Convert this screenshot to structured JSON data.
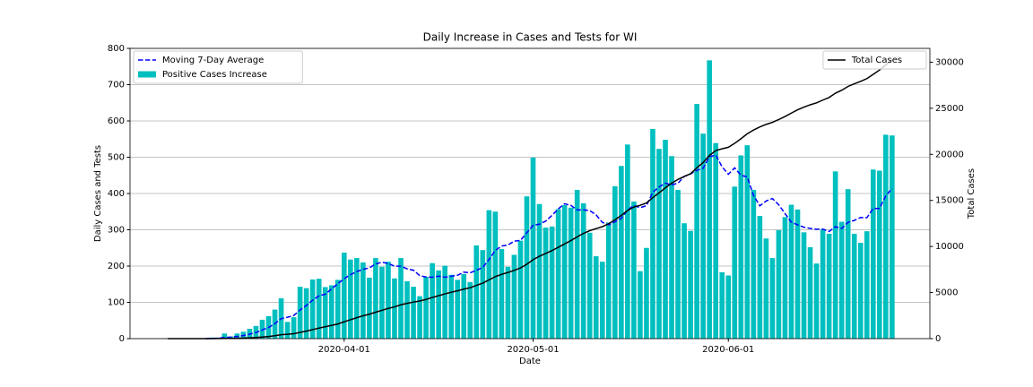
{
  "chart_data": {
    "type": "bar",
    "title": "Daily Increase in Cases and Tests for WI",
    "xlabel": "Date",
    "ylabel": "Daily Cases and Tests",
    "y2label": "Total Cases",
    "x": [
      "2020-03-04",
      "2020-03-05",
      "2020-03-06",
      "2020-03-07",
      "2020-03-08",
      "2020-03-09",
      "2020-03-10",
      "2020-03-11",
      "2020-03-12",
      "2020-03-13",
      "2020-03-14",
      "2020-03-15",
      "2020-03-16",
      "2020-03-17",
      "2020-03-18",
      "2020-03-19",
      "2020-03-20",
      "2020-03-21",
      "2020-03-22",
      "2020-03-23",
      "2020-03-24",
      "2020-03-25",
      "2020-03-26",
      "2020-03-27",
      "2020-03-28",
      "2020-03-29",
      "2020-03-30",
      "2020-03-31",
      "2020-04-01",
      "2020-04-02",
      "2020-04-03",
      "2020-04-04",
      "2020-04-05",
      "2020-04-06",
      "2020-04-07",
      "2020-04-08",
      "2020-04-09",
      "2020-04-10",
      "2020-04-11",
      "2020-04-12",
      "2020-04-13",
      "2020-04-14",
      "2020-04-15",
      "2020-04-16",
      "2020-04-17",
      "2020-04-18",
      "2020-04-19",
      "2020-04-20",
      "2020-04-21",
      "2020-04-22",
      "2020-04-23",
      "2020-04-24",
      "2020-04-25",
      "2020-04-26",
      "2020-04-27",
      "2020-04-28",
      "2020-04-29",
      "2020-04-30",
      "2020-05-01",
      "2020-05-02",
      "2020-05-03",
      "2020-05-04",
      "2020-05-05",
      "2020-05-06",
      "2020-05-07",
      "2020-05-08",
      "2020-05-09",
      "2020-05-10",
      "2020-05-11",
      "2020-05-12",
      "2020-05-13",
      "2020-05-14",
      "2020-05-15",
      "2020-05-16",
      "2020-05-17",
      "2020-05-18",
      "2020-05-19",
      "2020-05-20",
      "2020-05-21",
      "2020-05-22",
      "2020-05-23",
      "2020-05-24",
      "2020-05-25",
      "2020-05-26",
      "2020-05-27",
      "2020-05-28",
      "2020-05-29",
      "2020-05-30",
      "2020-05-31",
      "2020-06-01",
      "2020-06-02",
      "2020-06-03",
      "2020-06-04",
      "2020-06-05",
      "2020-06-06",
      "2020-06-07",
      "2020-06-08",
      "2020-06-09",
      "2020-06-10",
      "2020-06-11",
      "2020-06-12",
      "2020-06-13",
      "2020-06-14",
      "2020-06-15",
      "2020-06-16",
      "2020-06-17",
      "2020-06-18",
      "2020-06-19",
      "2020-06-20",
      "2020-06-21",
      "2020-06-22",
      "2020-06-23",
      "2020-06-24",
      "2020-06-25",
      "2020-06-26",
      "2020-06-27"
    ],
    "series": [
      {
        "name": "Moving 7-Day Average",
        "type": "line",
        "dashed": true,
        "color": "#0000ff",
        "values": [
          null,
          null,
          null,
          null,
          null,
          null,
          0.1,
          0.6,
          1.0,
          3.0,
          3.9,
          5.9,
          8.6,
          12.3,
          16.9,
          23.9,
          30.7,
          41.3,
          55.1,
          59.0,
          63.6,
          79.0,
          91.4,
          105.9,
          118.0,
          122.4,
          136.9,
          151.6,
          165.0,
          176.3,
          184.7,
          191.1,
          194.9,
          205.6,
          210.7,
          207.1,
          199.7,
          199.7,
          192.3,
          188.7,
          173.7,
          169.7,
          169.1,
          172.3,
          169.3,
          171.9,
          174.6,
          183.3,
          181.3,
          188.3,
          196.3,
          218.1,
          243.0,
          255.1,
          258.0,
          268.7,
          270.6,
          291.7,
          312.4,
          315.4,
          323.9,
          339.7,
          357.7,
          371.7,
          367.3,
          354.6,
          354.9,
          352.9,
          341.1,
          320.4,
          313.6,
          322.0,
          331.4,
          354.6,
          366.9,
          361.0,
          366.4,
          403.3,
          418.0,
          428.3,
          423.7,
          428.3,
          447.1,
          453.9,
          463.7,
          469.7,
          501.0,
          506.1,
          473.7,
          453.1,
          470.6,
          450.3,
          445.7,
          394.7,
          366.0,
          379.3,
          386.1,
          369.0,
          344.7,
          321.3,
          313.6,
          307.1,
          303.7,
          301.6,
          301.9,
          295.3,
          308.4,
          303.6,
          320.6,
          325.9,
          334.0,
          333.3,
          358.6,
          358.9,
          393.1,
          414.3
        ]
      },
      {
        "name": "Positive Cases Increase",
        "type": "bar",
        "color": "#00bfbf",
        "values": [
          0,
          0,
          0,
          0,
          0,
          0,
          1,
          3,
          3,
          14,
          6,
          14,
          19,
          27,
          35,
          52,
          62,
          80,
          111,
          46,
          59,
          143,
          139,
          163,
          165,
          142,
          147,
          162,
          237,
          218,
          222,
          210,
          168,
          222,
          198,
          212,
          166,
          222,
          158,
          143,
          117,
          170,
          208,
          188,
          201,
          176,
          162,
          178,
          156,
          257,
          244,
          354,
          350,
          247,
          198,
          231,
          270,
          392,
          499,
          371,
          306,
          309,
          357,
          368,
          361,
          410,
          373,
          292,
          227,
          212,
          320,
          420,
          476,
          535,
          378,
          186,
          250,
          578,
          523,
          548,
          503,
          410,
          318,
          297,
          647,
          565,
          767,
          539,
          183,
          174,
          419,
          505,
          533,
          410,
          338,
          276,
          222,
          299,
          335,
          369,
          356,
          293,
          252,
          207,
          301,
          289,
          461,
          322,
          412,
          289,
          264,
          296,
          466,
          463,
          562,
          560
        ]
      },
      {
        "name": "Total Cases",
        "type": "line",
        "axis": "y2",
        "color": "#000000",
        "values": [
          0,
          0,
          0,
          0,
          0,
          0,
          1,
          4,
          7,
          21,
          27,
          41,
          60,
          87,
          122,
          174,
          236,
          316,
          427,
          473,
          532,
          675,
          814,
          977,
          1142,
          1284,
          1431,
          1593,
          1830,
          2048,
          2270,
          2480,
          2648,
          2870,
          3068,
          3280,
          3446,
          3668,
          3826,
          3969,
          4086,
          4256,
          4464,
          4652,
          4853,
          5029,
          5191,
          5369,
          5525,
          5782,
          6026,
          6380,
          6730,
          6977,
          7175,
          7406,
          7676,
          8068,
          8567,
          8938,
          9244,
          9553,
          9910,
          10278,
          10639,
          11049,
          11422,
          11714,
          11941,
          12153,
          12473,
          12893,
          13369,
          13904,
          14282,
          14468,
          14718,
          15296,
          15819,
          16367,
          16870,
          17280,
          17598,
          17895,
          18542,
          19107,
          19874,
          20413,
          20596,
          20770,
          21189,
          21694,
          22227,
          22637,
          22975,
          23251,
          23473,
          23772,
          24107,
          24476,
          24832,
          25125,
          25377,
          25584,
          25885,
          26174,
          26635,
          26957,
          27369,
          27658,
          27922,
          28218,
          28684,
          29147,
          29709,
          30269
        ]
      }
    ],
    "xlim": [
      "2020-02-27",
      "2020-07-03"
    ],
    "xticks": [
      "2020-04-01",
      "2020-05-01",
      "2020-06-01"
    ],
    "ylim": [
      0,
      800
    ],
    "yticks": [
      0,
      100,
      200,
      300,
      400,
      500,
      600,
      700,
      800
    ],
    "y2lim": [
      0,
      31500
    ],
    "y2ticks": [
      0,
      5000,
      10000,
      15000,
      20000,
      25000,
      30000
    ],
    "grid": true,
    "legend": "upper left",
    "y2legend": "upper right"
  }
}
